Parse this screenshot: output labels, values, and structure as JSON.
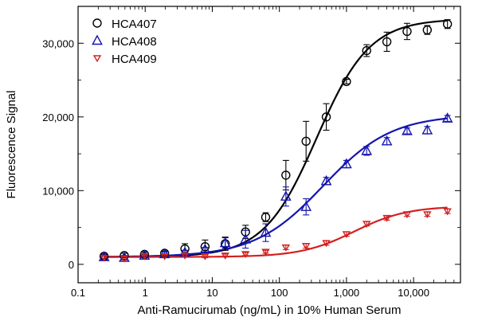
{
  "chart_data": {
    "type": "scatter",
    "xlabel": "Anti-Ramucirumab (ng/mL) in 10% Human Serum",
    "ylabel": "Fluorescence Signal",
    "x_scale": "log",
    "xlim": [
      0.1,
      50000
    ],
    "ylim": [
      -2500,
      35000
    ],
    "x_ticks": [
      {
        "value": 0.1,
        "label": "0.1"
      },
      {
        "value": 1,
        "label": "1"
      },
      {
        "value": 10,
        "label": "10"
      },
      {
        "value": 100,
        "label": "100"
      },
      {
        "value": 1000,
        "label": "1,000"
      },
      {
        "value": 10000,
        "label": "10,000"
      }
    ],
    "y_ticks": [
      {
        "value": 0,
        "label": "0"
      },
      {
        "value": 10000,
        "label": "10,000"
      },
      {
        "value": 20000,
        "label": "20,000"
      },
      {
        "value": 30000,
        "label": "30,000"
      }
    ],
    "legend_position": "top-left",
    "grid": false,
    "x": [
      0.244,
      0.488,
      0.977,
      1.95,
      3.91,
      7.81,
      15.6,
      31.3,
      62.5,
      125,
      250,
      500,
      1000,
      2000,
      4000,
      8000,
      16000,
      32000
    ],
    "series": [
      {
        "name": "HCA407",
        "color": "#000000",
        "marker": "circle",
        "values": [
          1100,
          1200,
          1350,
          1500,
          2100,
          2400,
          2800,
          4400,
          6400,
          12100,
          16700,
          20000,
          24800,
          29000,
          30200,
          31600,
          31800,
          32600
        ],
        "errors": [
          300,
          300,
          300,
          300,
          700,
          900,
          900,
          900,
          600,
          2000,
          2700,
          1800,
          300,
          800,
          1300,
          1100,
          600,
          600
        ],
        "fit": {
          "bottom": 1000,
          "top": 33300,
          "ec50": 360,
          "hill": 1.1
        }
      },
      {
        "name": "HCA408",
        "color": "#1515b0",
        "marker": "triangle-up",
        "values": [
          1000,
          900,
          1200,
          1400,
          1600,
          2000,
          2900,
          3400,
          4300,
          9200,
          7800,
          11300,
          13600,
          15400,
          16700,
          18100,
          18200,
          19800
        ],
        "errors": [
          300,
          300,
          200,
          300,
          300,
          300,
          700,
          1200,
          1200,
          1300,
          1100,
          500,
          500,
          600,
          500,
          400,
          500,
          400
        ],
        "fit": {
          "bottom": 1000,
          "top": 20300,
          "ec50": 450,
          "hill": 0.85
        }
      },
      {
        "name": "HCA409",
        "color": "#d42020",
        "marker": "triangle-down",
        "values": [
          900,
          800,
          1100,
          1100,
          1200,
          1100,
          1200,
          1400,
          1700,
          2300,
          2500,
          2900,
          4100,
          5500,
          6300,
          6800,
          6800,
          7200
        ],
        "errors": [
          200,
          200,
          200,
          200,
          200,
          200,
          200,
          200,
          200,
          300,
          300,
          300,
          300,
          300,
          300,
          300,
          300,
          300
        ],
        "fit": {
          "bottom": 1000,
          "top": 7900,
          "ec50": 1300,
          "hill": 1.1
        }
      }
    ]
  }
}
